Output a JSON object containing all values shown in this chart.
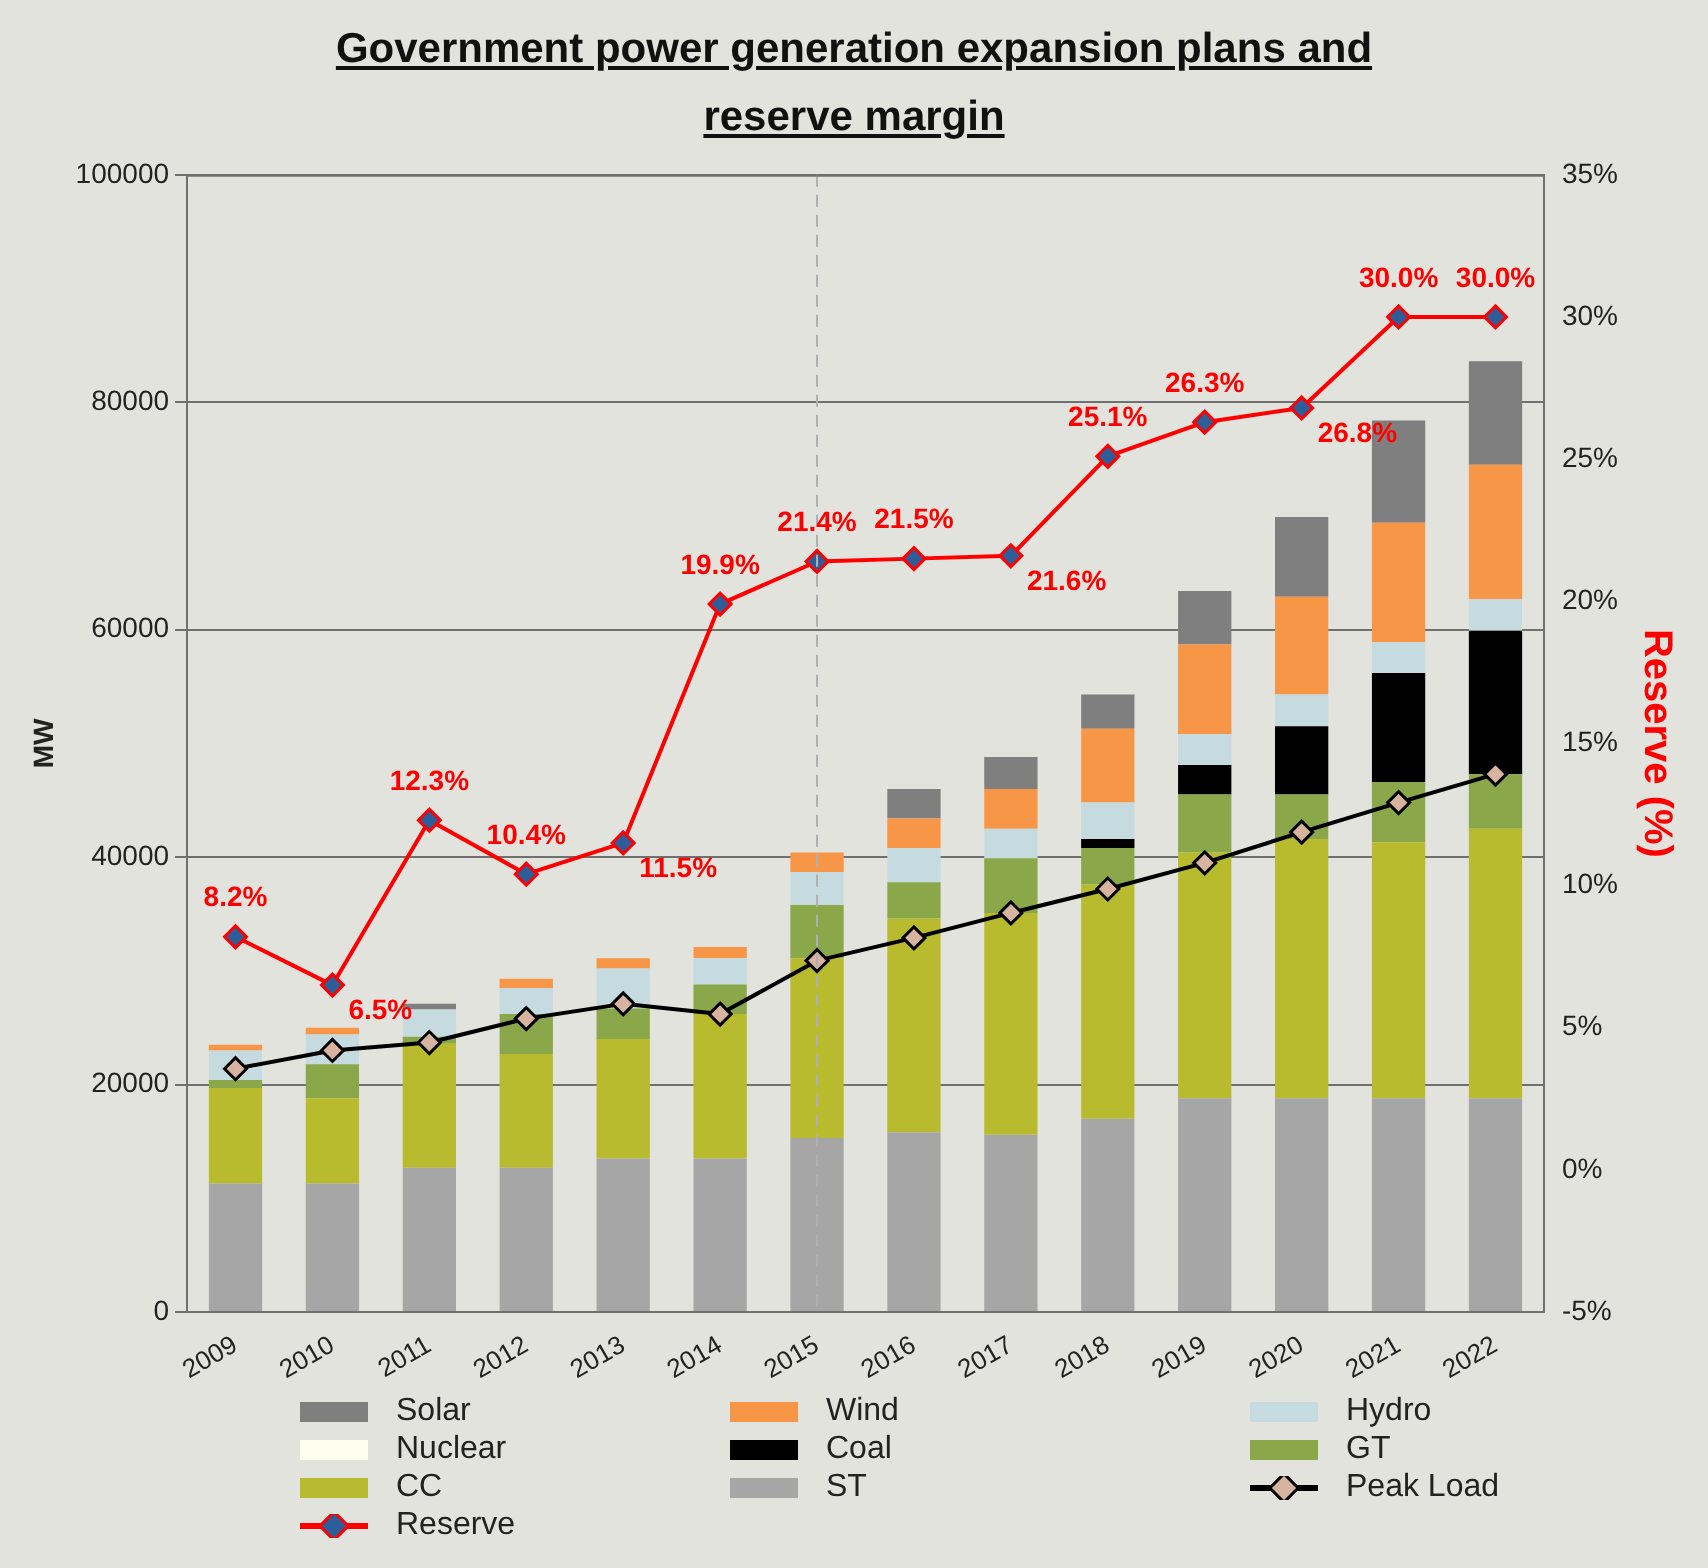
{
  "chart_data": {
    "type": "bar",
    "stacked": true,
    "title": "Government power generation expansion plans and reserve margin",
    "ylabel": "MW",
    "y2label": "Reserve (%)",
    "categories": [
      "2009",
      "2010",
      "2011",
      "2012",
      "2013",
      "2014",
      "2015",
      "2016",
      "2017",
      "2018",
      "2019",
      "2020",
      "2021",
      "2022"
    ],
    "series": [
      {
        "name": "ST",
        "color": "#a6a6a6",
        "values": [
          11300,
          11300,
          12700,
          12700,
          13500,
          13500,
          15300,
          15800,
          15600,
          17000,
          18800,
          18800,
          18800,
          18800
        ]
      },
      {
        "name": "CC",
        "color": "#b8bb2e",
        "values": [
          8400,
          7500,
          10900,
          10000,
          10500,
          12700,
          15800,
          18800,
          19500,
          20600,
          21600,
          22800,
          22500,
          23700
        ]
      },
      {
        "name": "GT",
        "color": "#8aa84a",
        "values": [
          700,
          3000,
          600,
          3500,
          2700,
          2600,
          4700,
          3200,
          4800,
          3200,
          5100,
          3900,
          5300,
          4800
        ]
      },
      {
        "name": "Coal",
        "color": "#000000",
        "values": [
          0,
          0,
          0,
          0,
          0,
          0,
          0,
          0,
          0,
          800,
          2600,
          6000,
          9600,
          12600
        ]
      },
      {
        "name": "Hydro",
        "color": "#c6dbe0",
        "values": [
          2600,
          2600,
          2400,
          2300,
          3500,
          2300,
          2900,
          3000,
          2600,
          3200,
          2700,
          2800,
          2700,
          2800
        ]
      },
      {
        "name": "Nuclear",
        "color": "#fffff0",
        "values": [
          0,
          0,
          0,
          0,
          0,
          0,
          0,
          0,
          0,
          0,
          0,
          0,
          0,
          0
        ]
      },
      {
        "name": "Wind",
        "color": "#f79646",
        "values": [
          500,
          600,
          0,
          800,
          900,
          1000,
          1700,
          2600,
          3500,
          6500,
          7900,
          8600,
          10500,
          11800
        ]
      },
      {
        "name": "Solar",
        "color": "#7f7f7f",
        "values": [
          0,
          0,
          500,
          0,
          0,
          0,
          0,
          2600,
          2800,
          3000,
          4700,
          7000,
          9000,
          9100
        ]
      },
      {
        "name": "Peak Load",
        "type": "line",
        "color": "#000000",
        "marker": "diamond",
        "line_style": "solid",
        "values": [
          21400,
          23000,
          23700,
          25800,
          27100,
          26200,
          30900,
          32900,
          35100,
          37200,
          39500,
          42200,
          44800,
          47300
        ]
      },
      {
        "name": "Reserve",
        "type": "line",
        "axis": "y2",
        "color": "#ff0000",
        "marker": "diamond",
        "line_style": "solid",
        "values": [
          8.2,
          6.5,
          12.3,
          10.4,
          11.5,
          19.9,
          21.4,
          21.5,
          21.6,
          25.1,
          26.3,
          26.8,
          30.0,
          30.0
        ],
        "value_labels": [
          "8.2%",
          "6.5%",
          "12.3%",
          "10.4%",
          "11.5%",
          "19.9%",
          "21.4%",
          "21.5%",
          "21.6%",
          "25.1%",
          "26.3%",
          "26.8%",
          "30.0%",
          "30.0%"
        ]
      }
    ],
    "ylim": [
      0,
      100000
    ],
    "yticks": [
      0,
      20000,
      40000,
      60000,
      80000,
      100000
    ],
    "y2lim": [
      -5,
      35
    ],
    "y2ticks": [
      {
        "value": -5,
        "label": "-5%"
      },
      {
        "value": 0,
        "label": "0%"
      },
      {
        "value": 5,
        "label": "5%"
      },
      {
        "value": 10,
        "label": "10%"
      },
      {
        "value": 15,
        "label": "15%"
      },
      {
        "value": 20,
        "label": "20%"
      },
      {
        "value": 25,
        "label": "25%"
      },
      {
        "value": 30,
        "label": "30%"
      },
      {
        "value": 35,
        "label": "35%"
      }
    ],
    "ref_lines": [
      {
        "axis": "x",
        "value": "2015",
        "color": "#b0b0b0",
        "line_style": "dashed"
      }
    ],
    "grid": "y",
    "legend": "bottom"
  }
}
